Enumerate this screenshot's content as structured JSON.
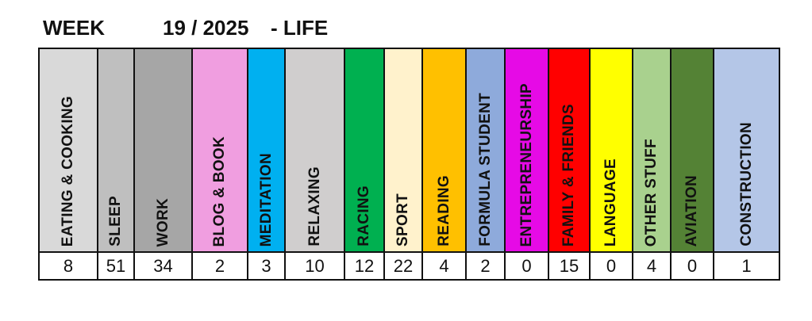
{
  "header": {
    "week_label": "WEEK",
    "week_number": "19 / 2025",
    "suffix": "- LIFE"
  },
  "columns": [
    {
      "label": "EATING & COOKING",
      "value": "8",
      "color": "#d9d9d9"
    },
    {
      "label": "SLEEP",
      "value": "51",
      "color": "#bfbfbf"
    },
    {
      "label": "WORK",
      "value": "34",
      "color": "#a6a6a6"
    },
    {
      "label": "BLOG & BOOK",
      "value": "2",
      "color": "#f09ee0"
    },
    {
      "label": "MEDITATION",
      "value": "3",
      "color": "#00b0f0"
    },
    {
      "label": "RELAXING",
      "value": "10",
      "color": "#d0cece"
    },
    {
      "label": "RACING",
      "value": "12",
      "color": "#00b050"
    },
    {
      "label": "SPORT",
      "value": "22",
      "color": "#fff2cc"
    },
    {
      "label": "READING",
      "value": "4",
      "color": "#ffc000"
    },
    {
      "label": "FORMULA STUDENT",
      "value": "2",
      "color": "#8eaadb"
    },
    {
      "label": "ENTREPRENEURSHIP",
      "value": "0",
      "color": "#e60ae6"
    },
    {
      "label": "FAMILY & FRIENDS",
      "value": "15",
      "color": "#ff0000"
    },
    {
      "label": "LANGUAGE",
      "value": "0",
      "color": "#ffff00"
    },
    {
      "label": "OTHER STUFF",
      "value": "4",
      "color": "#a9d18e"
    },
    {
      "label": "AVIATION",
      "value": "0",
      "color": "#548235"
    },
    {
      "label": "CONSTRUCTION",
      "value": "1",
      "color": "#b4c6e7"
    }
  ]
}
